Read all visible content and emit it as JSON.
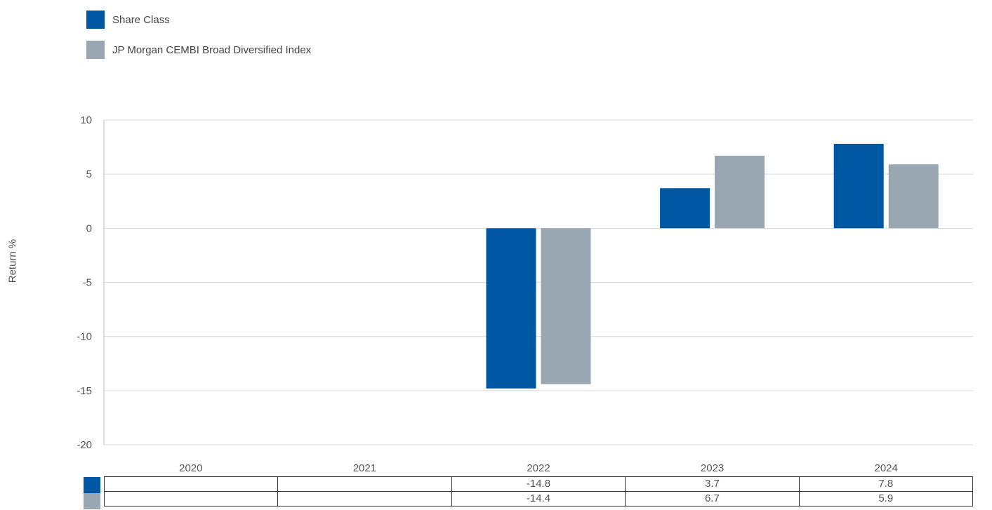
{
  "chart_data": {
    "type": "bar",
    "categories": [
      "2020",
      "2021",
      "2022",
      "2023",
      "2024"
    ],
    "series": [
      {
        "name": "Share Class",
        "values": [
          null,
          null,
          -14.8,
          3.7,
          7.8
        ],
        "color": "#0057a3"
      },
      {
        "name": "JP Morgan CEMBI Broad Diversified Index",
        "values": [
          null,
          null,
          -14.4,
          6.7,
          5.9
        ],
        "color": "#98a7b2"
      }
    ],
    "ylabel": "Return %",
    "ylim": [
      -20,
      10
    ],
    "yticks": [
      "10",
      "5",
      "0",
      "-5",
      "-10",
      "-15",
      "-20"
    ],
    "table_rows": [
      [
        "",
        "",
        "-14.8",
        "3.7",
        "7.8"
      ],
      [
        "",
        "",
        "-14.4",
        "6.7",
        "5.9"
      ]
    ],
    "legend_position": "top-left",
    "grid": true
  }
}
